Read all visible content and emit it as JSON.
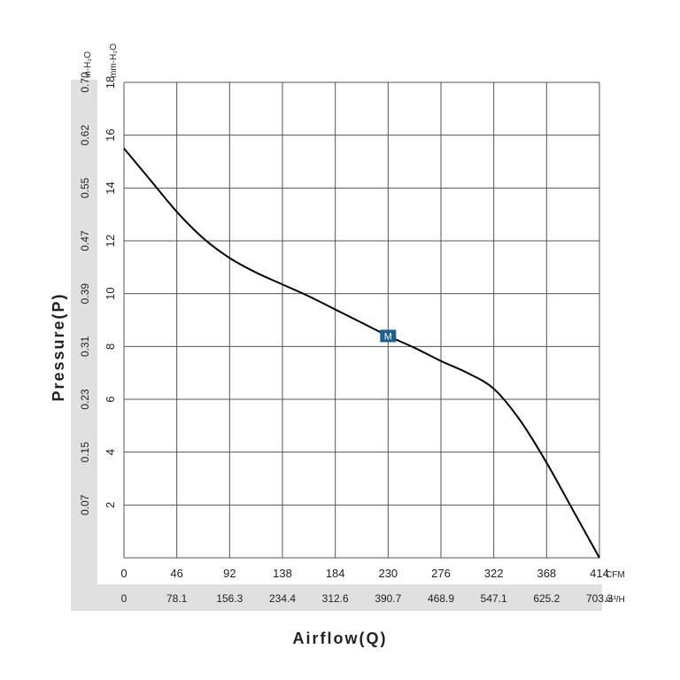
{
  "chart_data": {
    "type": "line",
    "title": "",
    "xlabel": "Airflow(Q)",
    "ylabel": "Pressure(P)",
    "x_unit_primary": "CFM",
    "x_unit_secondary": "m³/H",
    "y_unit_primary": "mm-H₂O",
    "y_unit_secondary": "in-H₂O",
    "xlim": [
      0,
      414
    ],
    "ylim": [
      0,
      18
    ],
    "x_ticks_primary": [
      "0",
      "46",
      "92",
      "138",
      "184",
      "230",
      "276",
      "322",
      "368",
      "414"
    ],
    "x_ticks_secondary": [
      "0",
      "78.1",
      "156.3",
      "234.4",
      "312.6",
      "390.7",
      "468.9",
      "547.1",
      "625.2",
      "703.3"
    ],
    "y_ticks_primary": [
      "2",
      "4",
      "6",
      "8",
      "10",
      "12",
      "14",
      "16",
      "18"
    ],
    "y_ticks_secondary": [
      "0.07",
      "0.15",
      "0.23",
      "0.31",
      "0.39",
      "0.47",
      "0.55",
      "0.62",
      "0.70"
    ],
    "grid": true,
    "series": [
      {
        "x": [
          0,
          23,
          46,
          69,
          92,
          115,
          138,
          161,
          184,
          207,
          230,
          253,
          276,
          299,
          322,
          345,
          368,
          391,
          414
        ],
        "y": [
          15.5,
          14.3,
          13.1,
          12.1,
          11.35,
          10.8,
          10.35,
          9.9,
          9.4,
          8.9,
          8.4,
          7.95,
          7.45,
          7.0,
          6.4,
          5.2,
          3.6,
          1.8,
          0.0
        ]
      }
    ],
    "marker": {
      "label": "M",
      "x": 230,
      "y": 8.4,
      "color": "#1f5f8b"
    }
  },
  "colors": {
    "band": "#e0e0e0",
    "grid": "#555555",
    "curve": "#000000",
    "marker": "#1f5f8b"
  }
}
